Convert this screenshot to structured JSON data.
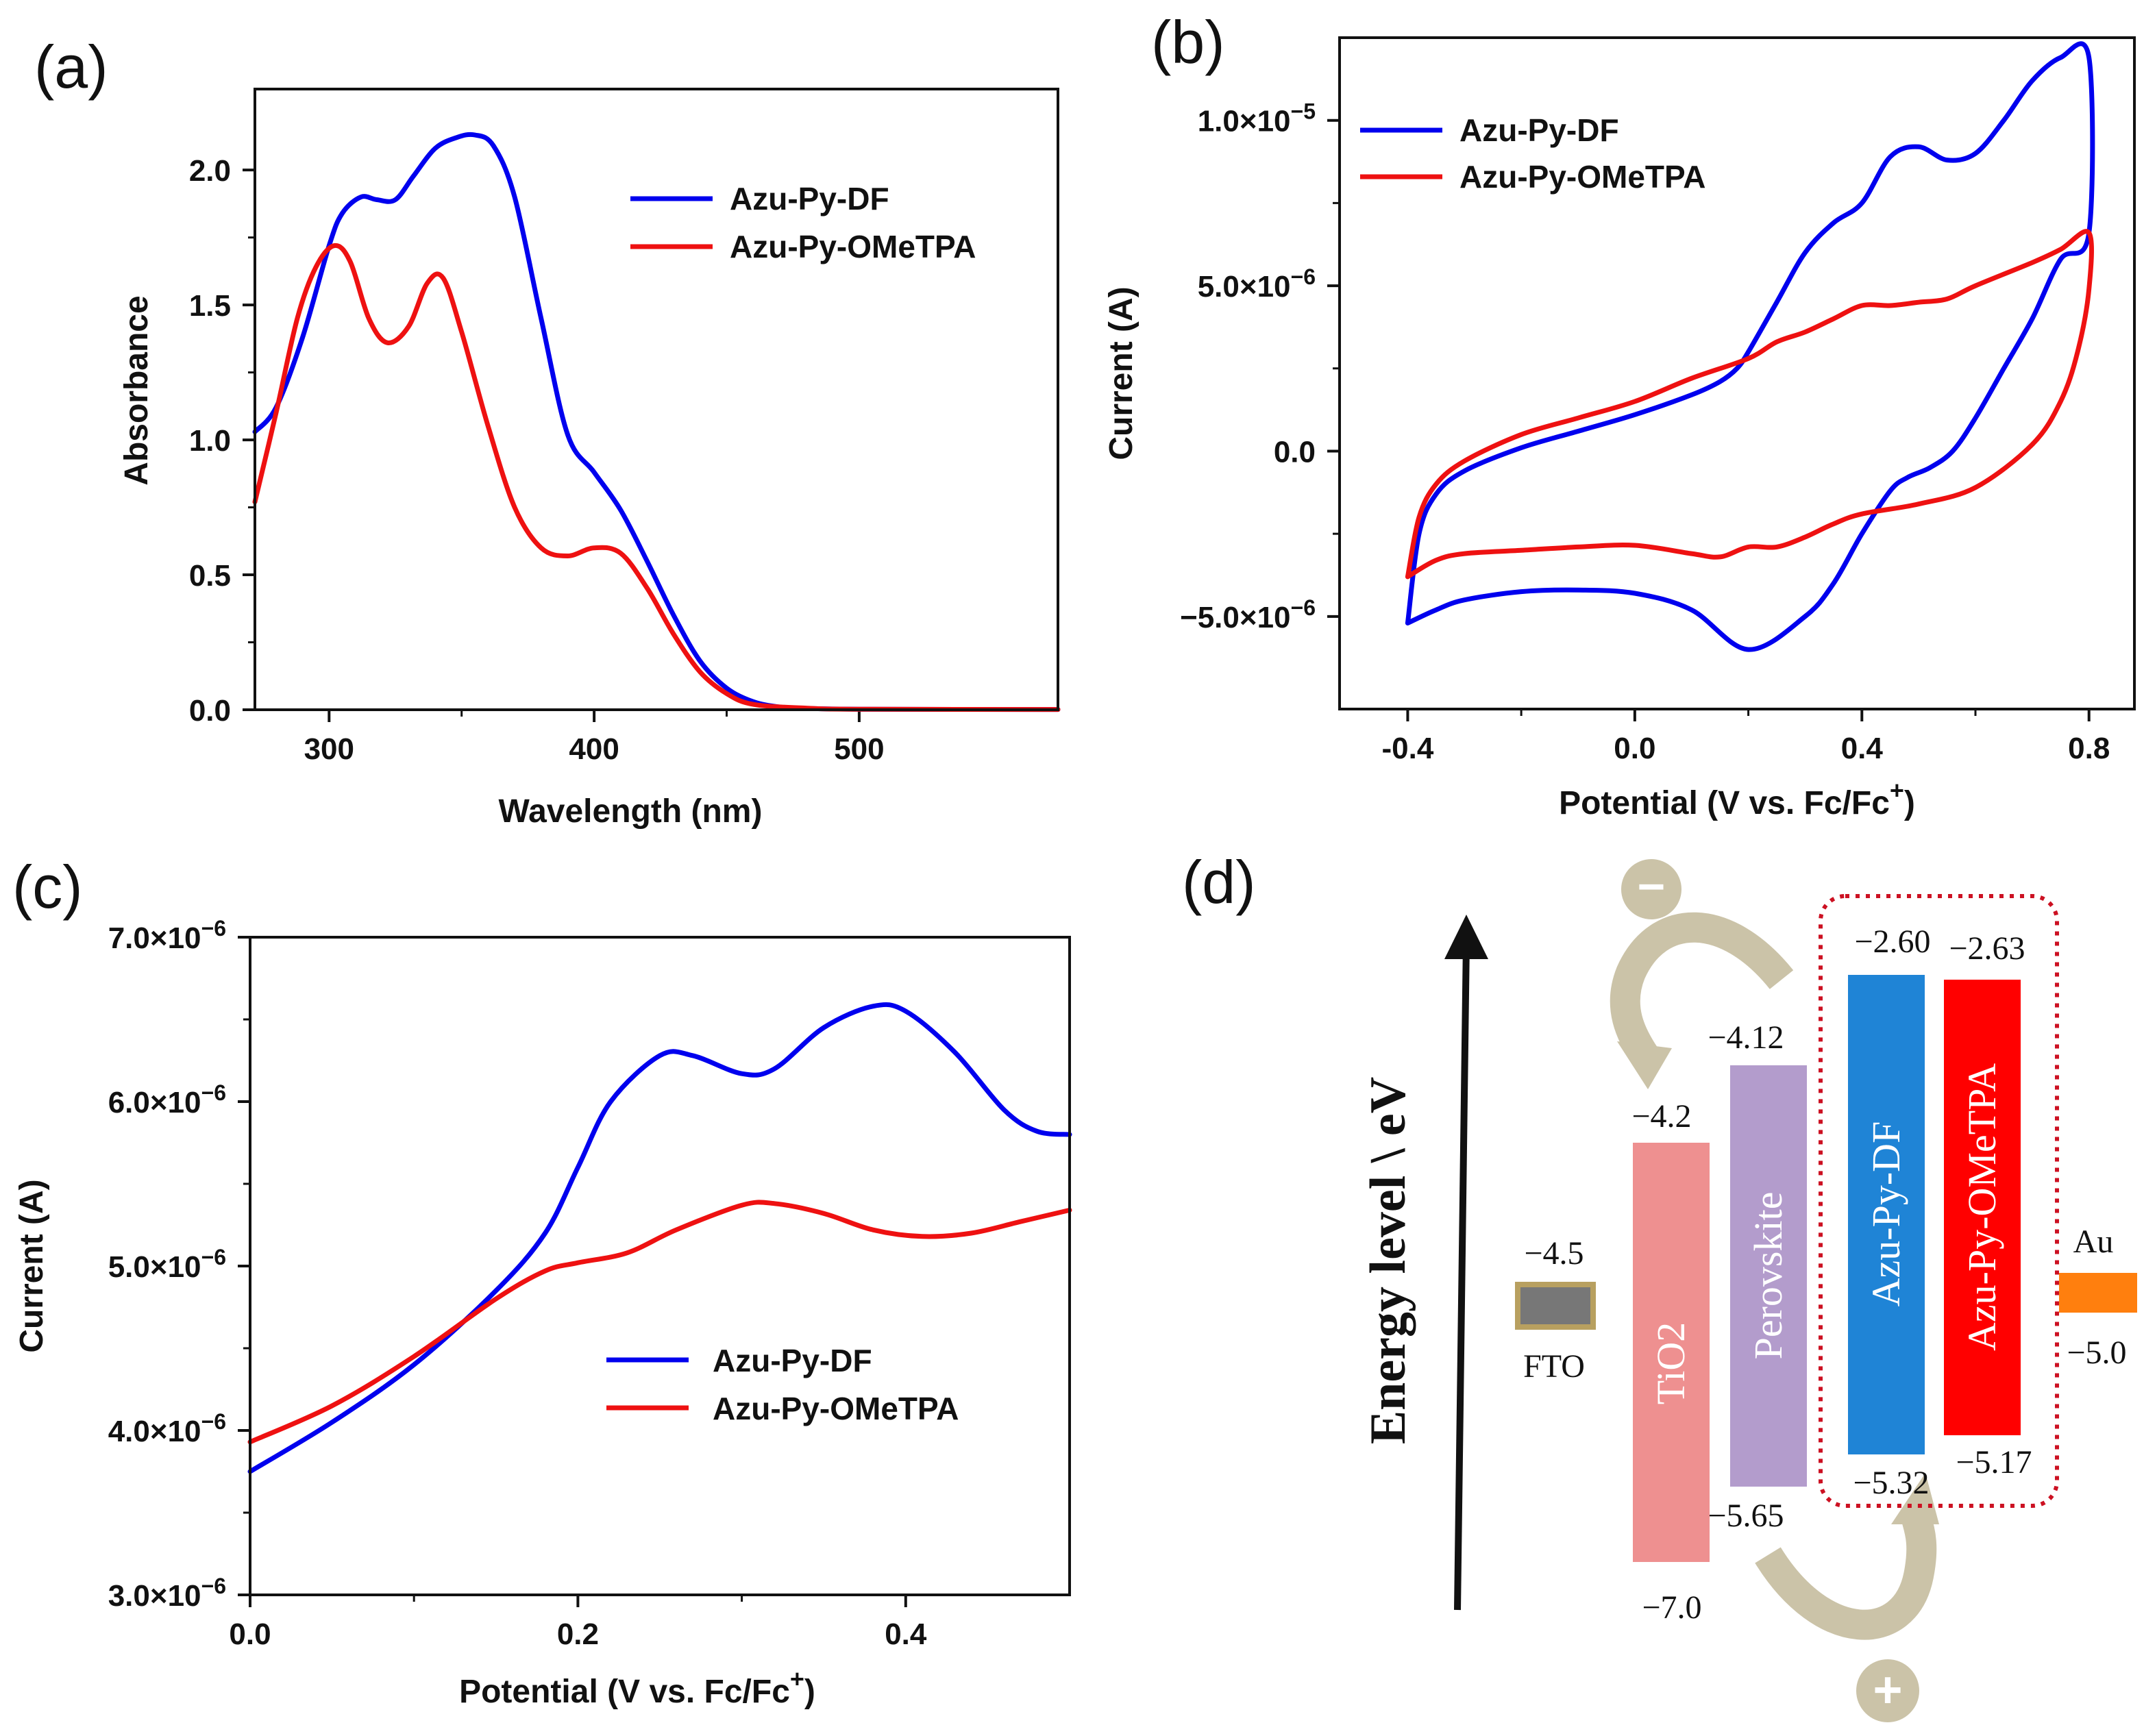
{
  "chart_data": [
    {
      "id": "a",
      "panel_label": "(a)",
      "type": "line",
      "xlabel": "Wavelength (nm)",
      "ylabel": "Absorbance",
      "xlim": [
        272,
        575
      ],
      "ylim": [
        0,
        2.3
      ],
      "xticks": [
        300,
        400,
        500
      ],
      "xtick_labels": [
        "300",
        "400",
        "500"
      ],
      "yticks": [
        0,
        0.5,
        1.0,
        1.5,
        2.0
      ],
      "ytick_labels": [
        "0.0",
        "0.5",
        "1.0",
        "1.5",
        "2.0"
      ],
      "legend_position": "top-right",
      "series": [
        {
          "name": "Azu-Py-DF",
          "color": "#0000ee",
          "x": [
            272,
            280,
            290,
            300,
            305,
            312,
            318,
            325,
            332,
            340,
            348,
            355,
            362,
            370,
            380,
            390,
            400,
            410,
            420,
            430,
            440,
            450,
            460,
            470,
            480,
            500,
            575
          ],
          "y": [
            1.03,
            1.12,
            1.38,
            1.72,
            1.84,
            1.9,
            1.89,
            1.89,
            1.98,
            2.08,
            2.12,
            2.13,
            2.09,
            1.9,
            1.45,
            1.02,
            0.88,
            0.74,
            0.55,
            0.35,
            0.18,
            0.08,
            0.03,
            0.01,
            0.005,
            0.002,
            0.001
          ]
        },
        {
          "name": "Azu-Py-OMeTPA",
          "color": "#ee1111",
          "x": [
            272,
            280,
            288,
            295,
            302,
            308,
            315,
            322,
            330,
            337,
            343,
            350,
            360,
            370,
            380,
            390,
            400,
            410,
            420,
            430,
            440,
            450,
            460,
            480,
            500,
            575
          ],
          "y": [
            0.77,
            1.1,
            1.45,
            1.64,
            1.72,
            1.66,
            1.45,
            1.36,
            1.42,
            1.58,
            1.6,
            1.4,
            1.05,
            0.75,
            0.6,
            0.57,
            0.6,
            0.58,
            0.45,
            0.28,
            0.14,
            0.06,
            0.02,
            0.006,
            0.002,
            0.001
          ]
        }
      ]
    },
    {
      "id": "b",
      "panel_label": "(b)",
      "type": "line",
      "xlabel": "Potential (V vs. Fc/Fc",
      "xlabel_sup": "+",
      "xlabel_tail": ")",
      "ylabel": "Current (A)",
      "xlim": [
        -0.52,
        0.88
      ],
      "ylim": [
        -7.8e-06,
        1.25e-05
      ],
      "xticks": [
        -0.4,
        0.0,
        0.4,
        0.8
      ],
      "xtick_labels": [
        "-0.4",
        "0.0",
        "0.4",
        "0.8"
      ],
      "yticks": [
        -5e-06,
        0,
        5e-06,
        1e-05
      ],
      "ytick_labels": [
        {
          "base": "−5.0×10",
          "exp": "−6"
        },
        {
          "base": "0.0",
          "exp": ""
        },
        {
          "base": "5.0×10",
          "exp": "−6"
        },
        {
          "base": "1.0×10",
          "exp": "−5"
        }
      ],
      "legend_position": "top-left",
      "series": [
        {
          "name": "Azu-Py-DF",
          "color": "#0000ee",
          "x": [
            -0.4,
            -0.35,
            -0.3,
            -0.2,
            -0.1,
            0.0,
            0.1,
            0.2,
            0.3,
            0.35,
            0.4,
            0.45,
            0.48,
            0.52,
            0.56,
            0.6,
            0.65,
            0.7,
            0.75,
            0.8,
            0.8,
            0.75,
            0.7,
            0.65,
            0.6,
            0.55,
            0.5,
            0.45,
            0.4,
            0.35,
            0.3,
            0.25,
            0.2,
            0.18,
            0.15,
            0.1,
            0.0,
            -0.1,
            -0.2,
            -0.3,
            -0.35,
            -0.38,
            -0.4
          ],
          "y": [
            -5.2e-06,
            -4.8e-06,
            -4.5e-06,
            -4.25e-06,
            -4.2e-06,
            -4.3e-06,
            -4.8e-06,
            -6e-06,
            -5e-06,
            -4e-06,
            -2.5e-06,
            -1.2e-06,
            -8e-07,
            -5e-07,
            0.0,
            1e-06,
            2.5e-06,
            4e-06,
            5.8e-06,
            6.6e-06,
            1.19e-05,
            1.19e-05,
            1.12e-05,
            1e-05,
            9e-06,
            8.8e-06,
            9.2e-06,
            8.9e-06,
            7.5e-06,
            6.9e-06,
            6e-06,
            4.5e-06,
            3e-06,
            2.5e-06,
            2.1e-06,
            1.7e-06,
            1.1e-06,
            6e-07,
            1e-07,
            -6e-07,
            -1.3e-06,
            -2.5e-06,
            -5.2e-06
          ]
        },
        {
          "name": "Azu-Py-OMeTPA",
          "color": "#ee1111",
          "x": [
            -0.4,
            -0.35,
            -0.3,
            -0.2,
            -0.1,
            0.0,
            0.1,
            0.15,
            0.2,
            0.25,
            0.3,
            0.35,
            0.4,
            0.5,
            0.6,
            0.7,
            0.75,
            0.78,
            0.8,
            0.8,
            0.75,
            0.7,
            0.6,
            0.55,
            0.5,
            0.45,
            0.4,
            0.35,
            0.3,
            0.25,
            0.2,
            0.1,
            0.0,
            -0.1,
            -0.2,
            -0.3,
            -0.35,
            -0.38,
            -0.4
          ],
          "y": [
            -3.8e-06,
            -3.3e-06,
            -3.1e-06,
            -3e-06,
            -2.9e-06,
            -2.85e-06,
            -3.1e-06,
            -3.2e-06,
            -2.9e-06,
            -2.9e-06,
            -2.6e-06,
            -2.2e-06,
            -1.9e-06,
            -1.6e-06,
            -1.1e-06,
            2e-07,
            1.5e-06,
            3e-06,
            4.9e-06,
            6.6e-06,
            6.1e-06,
            5.7e-06,
            5e-06,
            4.6e-06,
            4.5e-06,
            4.4e-06,
            4.4e-06,
            4e-06,
            3.6e-06,
            3.3e-06,
            2.8e-06,
            2.2e-06,
            1.5e-06,
            1e-06,
            5e-07,
            -3e-07,
            -1e-06,
            -2e-06,
            -3.8e-06
          ]
        }
      ]
    },
    {
      "id": "c",
      "panel_label": "(c)",
      "type": "line",
      "xlabel": "Potential (V vs. Fc/Fc",
      "xlabel_sup": "+",
      "xlabel_tail": ")",
      "ylabel": "Current (A)",
      "xlim": [
        0,
        0.5
      ],
      "ylim": [
        3e-06,
        7e-06
      ],
      "xticks": [
        0.0,
        0.2,
        0.4
      ],
      "xtick_labels": [
        "0.0",
        "0.2",
        "0.4"
      ],
      "yticks": [
        3e-06,
        4e-06,
        5e-06,
        6e-06,
        7e-06
      ],
      "ytick_labels": [
        {
          "base": "3.0×10",
          "exp": "−6"
        },
        {
          "base": "4.0×10",
          "exp": "−6"
        },
        {
          "base": "5.0×10",
          "exp": "−6"
        },
        {
          "base": "6.0×10",
          "exp": "−6"
        },
        {
          "base": "7.0×10",
          "exp": "−6"
        }
      ],
      "legend_position": "bottom-right",
      "series": [
        {
          "name": "Azu-Py-DF",
          "color": "#0000ee",
          "x": [
            0.0,
            0.05,
            0.1,
            0.15,
            0.18,
            0.2,
            0.22,
            0.25,
            0.27,
            0.3,
            0.32,
            0.35,
            0.38,
            0.4,
            0.43,
            0.46,
            0.48,
            0.5
          ],
          "y": [
            3.75e-06,
            4.05e-06,
            4.4e-06,
            4.85e-06,
            5.2e-06,
            5.6e-06,
            6e-06,
            6.28e-06,
            6.28e-06,
            6.17e-06,
            6.2e-06,
            6.45e-06,
            6.58e-06,
            6.55e-06,
            6.3e-06,
            5.95e-06,
            5.82e-06,
            5.8e-06
          ]
        },
        {
          "name": "Azu-Py-OMeTPA",
          "color": "#ee1111",
          "x": [
            0.0,
            0.05,
            0.1,
            0.15,
            0.18,
            0.2,
            0.23,
            0.26,
            0.3,
            0.32,
            0.35,
            0.38,
            0.41,
            0.44,
            0.47,
            0.5
          ],
          "y": [
            3.93e-06,
            4.15e-06,
            4.45e-06,
            4.8e-06,
            4.97e-06,
            5.02e-06,
            5.08e-06,
            5.22e-06,
            5.37e-06,
            5.38e-06,
            5.32e-06,
            5.22e-06,
            5.18e-06,
            5.2e-06,
            5.27e-06,
            5.34e-06
          ]
        }
      ]
    }
  ],
  "diagram": {
    "panel_label": "(d)",
    "axis_title": "Energy level \\ eV",
    "minus_symbol": "−",
    "plus_symbol": "+",
    "fto": {
      "label": "FTO",
      "level": "−4.5",
      "color": "#777777",
      "border": "#b8a060"
    },
    "tio2": {
      "label": "TiO2",
      "top": "−4.2",
      "bottom": "−7.0",
      "color": "#ee9090"
    },
    "perovskite": {
      "label": "Perovskite",
      "top": "−4.12",
      "bottom": "−5.65",
      "color": "#b39ccc"
    },
    "azu_df": {
      "label": "Azu-Py-DF",
      "top": "−2.60",
      "bottom": "−5.32",
      "color": "#1f84d6"
    },
    "azu_ometpa": {
      "label": "Azu-Py-OMeTPA",
      "top": "−2.63",
      "bottom": "−5.17",
      "color": "#ff0000"
    },
    "au": {
      "label": "Au",
      "level": "−5.0",
      "color": "#ff7f0e"
    },
    "arrow_color": "#cbc3a8",
    "htm_box_color": "#cc1122"
  }
}
